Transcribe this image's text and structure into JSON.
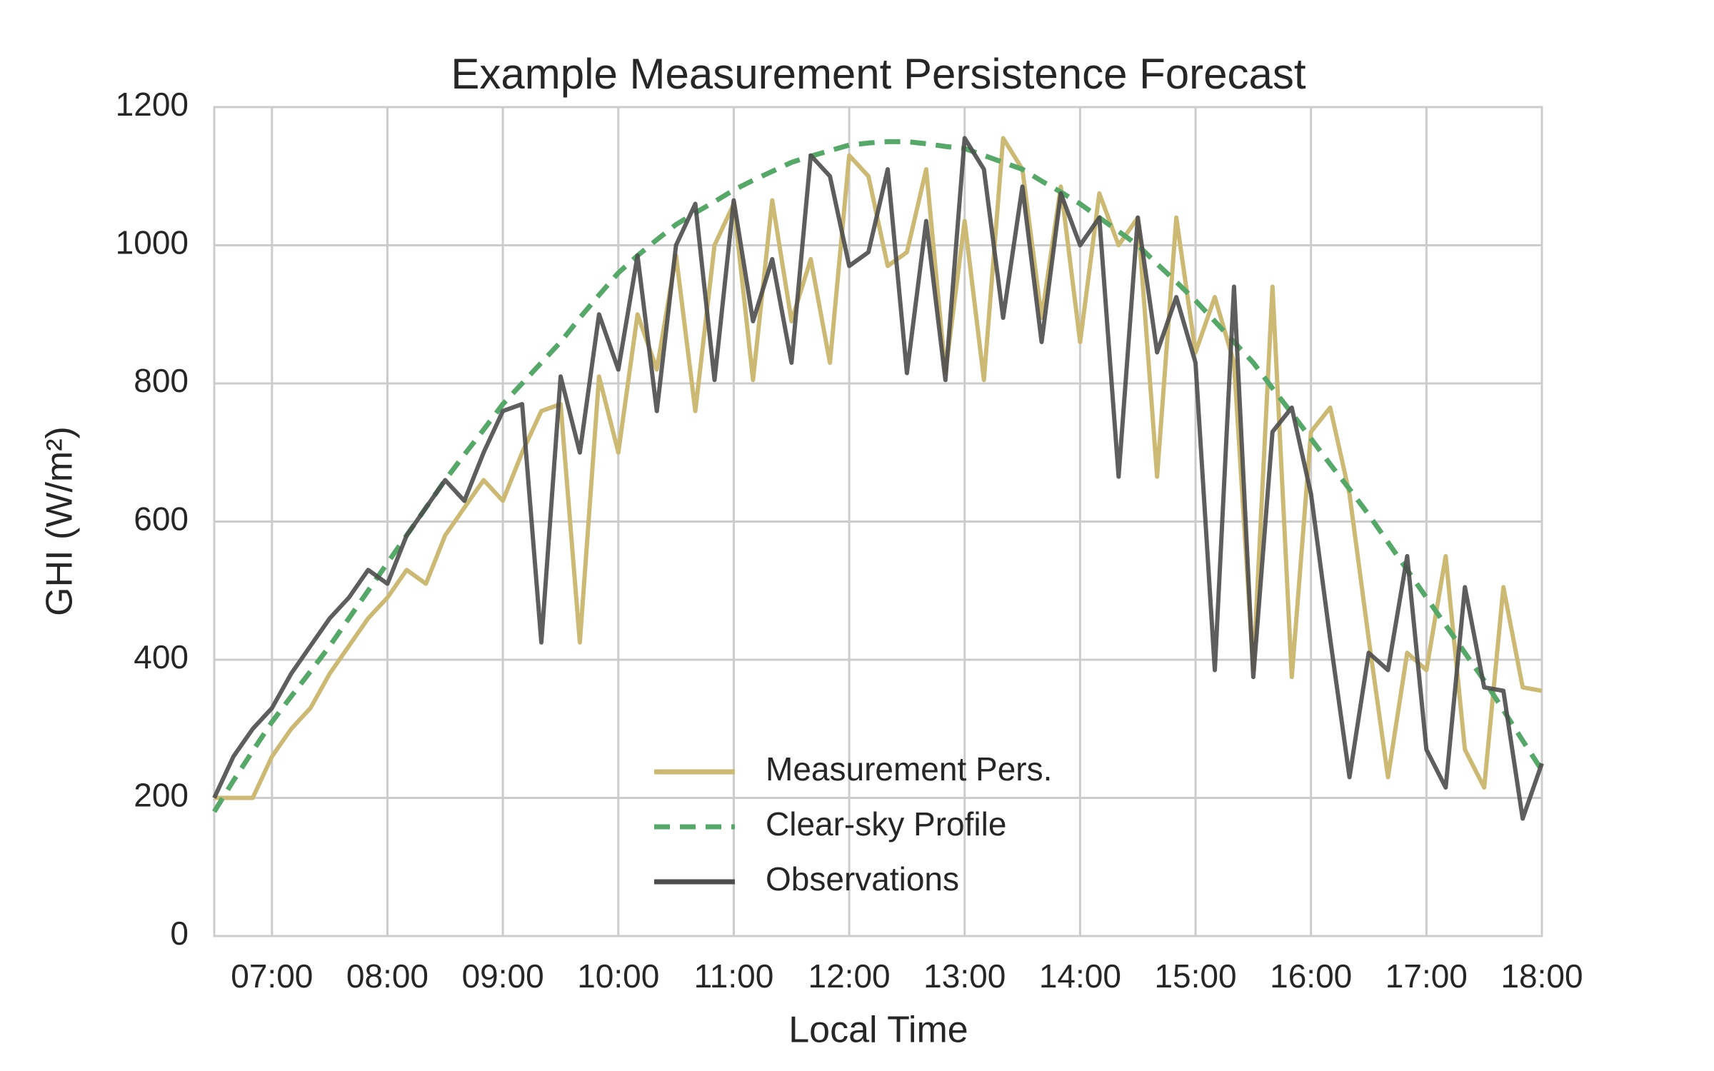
{
  "chart_data": {
    "type": "line",
    "title": "Example Measurement Persistence Forecast",
    "x_label": "Local Time",
    "y_label": "GHI (W/m²)",
    "x": [
      "06:30",
      "06:40",
      "06:50",
      "07:00",
      "07:10",
      "07:20",
      "07:30",
      "07:40",
      "07:50",
      "08:00",
      "08:10",
      "08:20",
      "08:30",
      "08:40",
      "08:50",
      "09:00",
      "09:10",
      "09:20",
      "09:30",
      "09:40",
      "09:50",
      "10:00",
      "10:10",
      "10:20",
      "10:30",
      "10:40",
      "10:50",
      "11:00",
      "11:10",
      "11:20",
      "11:30",
      "11:40",
      "11:50",
      "12:00",
      "12:10",
      "12:20",
      "12:30",
      "12:40",
      "12:50",
      "13:00",
      "13:10",
      "13:20",
      "13:30",
      "13:40",
      "13:50",
      "14:00",
      "14:10",
      "14:20",
      "14:30",
      "14:40",
      "14:50",
      "15:00",
      "15:10",
      "15:20",
      "15:30",
      "15:40",
      "15:50",
      "16:00",
      "16:10",
      "16:20",
      "16:30",
      "16:40",
      "16:50",
      "17:00",
      "17:10",
      "17:20",
      "17:30",
      "17:40",
      "17:50",
      "18:00"
    ],
    "series": [
      {
        "name": "Measurement Pers.",
        "color": "#ccb974",
        "linestyle": "solid",
        "values": [
          200,
          200,
          200,
          260,
          300,
          330,
          380,
          420,
          460,
          490,
          530,
          510,
          580,
          620,
          660,
          630,
          700,
          760,
          770,
          425,
          810,
          700,
          900,
          820,
          985,
          760,
          1000,
          1060,
          805,
          1065,
          890,
          980,
          830,
          1130,
          1100,
          970,
          990,
          1110,
          815,
          1035,
          805,
          1155,
          1110,
          895,
          1085,
          860,
          1075,
          1000,
          1040,
          665,
          1040,
          845,
          925,
          830,
          385,
          940,
          375,
          730,
          765,
          640,
          430,
          230,
          410,
          385,
          550,
          270,
          215,
          505,
          360,
          355
        ]
      },
      {
        "name": "Clear-sky Profile",
        "color": "#55a868",
        "linestyle": "dashed",
        "values": [
          180,
          225,
          268,
          310,
          347,
          383,
          420,
          460,
          500,
          540,
          580,
          620,
          660,
          697,
          733,
          770,
          800,
          830,
          860,
          895,
          928,
          960,
          985,
          1008,
          1030,
          1047,
          1063,
          1080,
          1094,
          1107,
          1120,
          1129,
          1137,
          1145,
          1148,
          1150,
          1150,
          1147,
          1143,
          1140,
          1130,
          1120,
          1110,
          1093,
          1077,
          1060,
          1040,
          1020,
          1000,
          973,
          947,
          920,
          890,
          860,
          830,
          793,
          757,
          720,
          683,
          647,
          610,
          570,
          530,
          490,
          450,
          410,
          370,
          327,
          283,
          240
        ]
      },
      {
        "name": "Observations",
        "color": "#4d4d4d",
        "linestyle": "solid",
        "values": [
          200,
          260,
          300,
          330,
          380,
          420,
          460,
          490,
          530,
          510,
          580,
          620,
          660,
          630,
          700,
          760,
          770,
          425,
          810,
          700,
          900,
          820,
          985,
          760,
          1000,
          1060,
          805,
          1065,
          890,
          980,
          830,
          1130,
          1100,
          970,
          990,
          1110,
          815,
          1035,
          805,
          1155,
          1110,
          895,
          1085,
          860,
          1075,
          1000,
          1040,
          665,
          1040,
          845,
          925,
          830,
          385,
          940,
          375,
          730,
          765,
          640,
          430,
          230,
          410,
          385,
          550,
          270,
          215,
          505,
          360,
          355,
          170,
          250
        ]
      }
    ],
    "xlim": [
      "06:30",
      "18:00"
    ],
    "xticks": [
      "07:00",
      "08:00",
      "09:00",
      "10:00",
      "11:00",
      "12:00",
      "13:00",
      "14:00",
      "15:00",
      "16:00",
      "17:00",
      "18:00"
    ],
    "ylim": [
      0,
      1200
    ],
    "yticks": [
      0,
      200,
      400,
      600,
      800,
      1000,
      1200
    ],
    "grid": true,
    "legend": "lower center"
  }
}
